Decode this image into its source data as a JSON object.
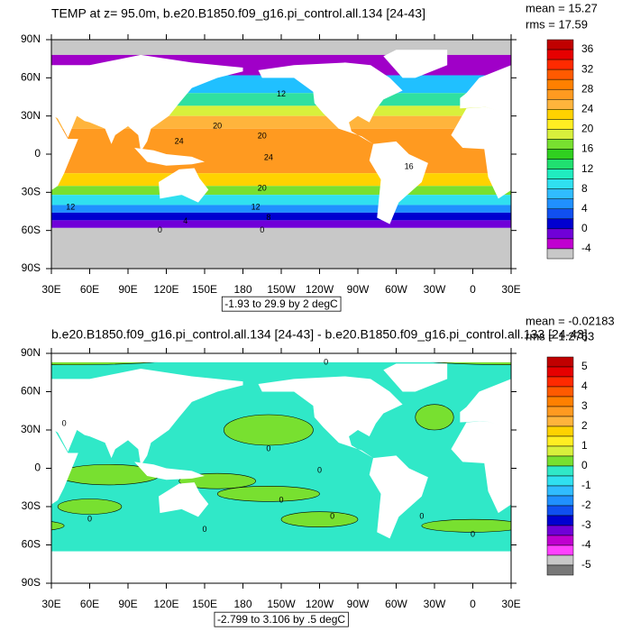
{
  "panels": [
    {
      "title": "TEMP at z=  95.0m, b.e20.B1850.f09_g16.pi_control.all.134 [24-43]",
      "stats": [
        "mean = 15.27",
        "rms = 17.59"
      ],
      "y_labels": [
        "90N",
        "60N",
        "30N",
        "0",
        "30S",
        "60S",
        "90S"
      ],
      "x_labels": [
        "30E",
        "60E",
        "90E",
        "120E",
        "150E",
        "180",
        "150W",
        "120W",
        "90W",
        "60W",
        "30W",
        "0",
        "30E"
      ],
      "info": "-1.93 to 29.9 by 2 degC",
      "colorbar": {
        "labels": [
          "36",
          "32",
          "28",
          "24",
          "20",
          "16",
          "12",
          "8",
          "4",
          "0",
          "-4"
        ],
        "colors": [
          "#c00000",
          "#e60000",
          "#ff2a00",
          "#ff5a00",
          "#ff8000",
          "#ff9a20",
          "#ffb43c",
          "#ffd200",
          "#ffee22",
          "#d8f03c",
          "#78e030",
          "#30d020",
          "#20e070",
          "#20ecc0",
          "#30e0f0",
          "#30bcff",
          "#2090ff",
          "#1050f0",
          "#0000d0",
          "#7000d8",
          "#c000d0",
          "#c8c8c8"
        ]
      },
      "contour_labels": [
        "20",
        "12",
        "24",
        "20",
        "24",
        "16",
        "20",
        "12",
        "8",
        "12",
        "4",
        "0",
        "0"
      ]
    },
    {
      "title": "b.e20.B1850.f09_g16.pi_control.all.134 [24-43] - b.e20.B1850.f09_g16.pi_control.all.133 [24-43]",
      "stats": [
        "mean = -0.02183",
        "rms = 1.2763"
      ],
      "y_labels": [
        "90N",
        "60N",
        "30N",
        "0",
        "30S",
        "60S",
        "90S"
      ],
      "x_labels": [
        "30E",
        "60E",
        "90E",
        "120E",
        "150E",
        "180",
        "150W",
        "120W",
        "90W",
        "60W",
        "30W",
        "0",
        "30E"
      ],
      "info": "-2.799 to 3.106 by .5 degC",
      "colorbar": {
        "labels": [
          "5",
          "4",
          "3",
          "2",
          "1",
          "0",
          "-1",
          "-2",
          "-3",
          "-4",
          "-5"
        ],
        "colors": [
          "#c00000",
          "#e60000",
          "#ff2a00",
          "#ff5a00",
          "#ff8000",
          "#ff9a20",
          "#ffb43c",
          "#ffd200",
          "#ffee22",
          "#d8f03c",
          "#78e030",
          "#30e8c8",
          "#30e0f0",
          "#30bcff",
          "#2090ff",
          "#1050f0",
          "#0000d0",
          "#7000d8",
          "#c000d0",
          "#ff40ff",
          "#c8c8c8",
          "#787878"
        ]
      },
      "contour_labels": [
        "0",
        "0",
        "0",
        "0",
        "0",
        "0",
        "0",
        "0",
        "0",
        "0"
      ]
    }
  ]
}
